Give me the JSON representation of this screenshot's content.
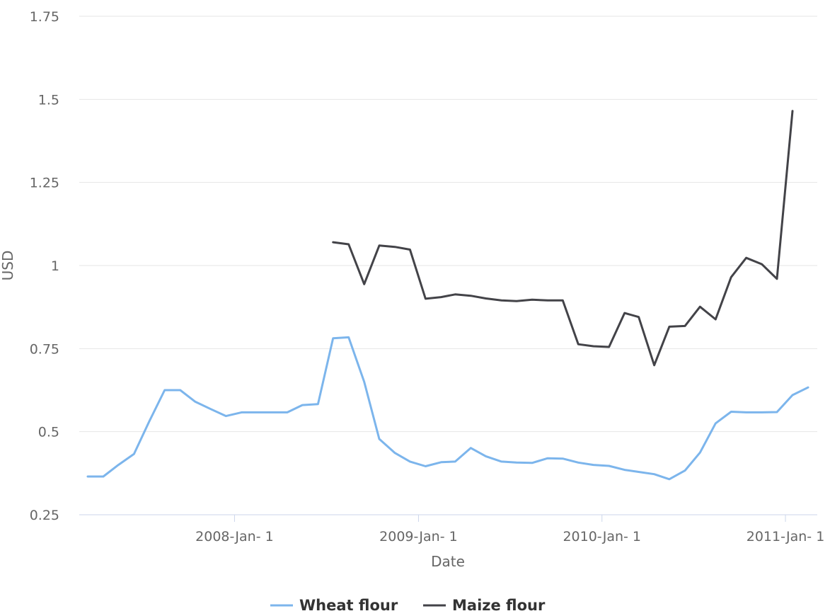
{
  "chart_data": {
    "type": "line",
    "title": "",
    "xlabel": "Date",
    "ylabel": "USD",
    "ylim": [
      0.25,
      1.75
    ],
    "yticks": [
      "0.25",
      "0.5",
      "0.75",
      "1",
      "1.25",
      "1.5",
      "1.75"
    ],
    "xticks": [
      {
        "label": "2008-Jan- 1",
        "date": "2008-01-01"
      },
      {
        "label": "2009-Jan- 1",
        "date": "2009-01-01"
      },
      {
        "label": "2010-Jan- 1",
        "date": "2010-01-01"
      },
      {
        "label": "2011-Jan- 1",
        "date": "2011-01-01"
      }
    ],
    "grid": true,
    "legend_position": "bottom",
    "series": [
      {
        "name": "Wheat flour",
        "color": "#7cb5ec",
        "points": [
          [
            "2007-03-15",
            0.365
          ],
          [
            "2007-04-15",
            0.365
          ],
          [
            "2007-05-15",
            0.4
          ],
          [
            "2007-06-15",
            0.433
          ],
          [
            "2007-07-15",
            0.53
          ],
          [
            "2007-08-15",
            0.625
          ],
          [
            "2007-09-15",
            0.625
          ],
          [
            "2007-10-15",
            0.59
          ],
          [
            "2007-11-15",
            0.568
          ],
          [
            "2007-12-15",
            0.547
          ],
          [
            "2008-01-15",
            0.558
          ],
          [
            "2008-02-15",
            0.558
          ],
          [
            "2008-03-15",
            0.558
          ],
          [
            "2008-04-15",
            0.558
          ],
          [
            "2008-05-15",
            0.58
          ],
          [
            "2008-06-15",
            0.583
          ],
          [
            "2008-07-15",
            0.781
          ],
          [
            "2008-08-15",
            0.784
          ],
          [
            "2008-09-15",
            0.65
          ],
          [
            "2008-10-15",
            0.478
          ],
          [
            "2008-11-15",
            0.436
          ],
          [
            "2008-12-15",
            0.41
          ],
          [
            "2009-01-15",
            0.396
          ],
          [
            "2009-02-15",
            0.408
          ],
          [
            "2009-03-15",
            0.41
          ],
          [
            "2009-04-15",
            0.451
          ],
          [
            "2009-05-15",
            0.426
          ],
          [
            "2009-06-15",
            0.41
          ],
          [
            "2009-07-15",
            0.407
          ],
          [
            "2009-08-15",
            0.406
          ],
          [
            "2009-09-15",
            0.42
          ],
          [
            "2009-10-15",
            0.419
          ],
          [
            "2009-11-15",
            0.407
          ],
          [
            "2009-12-15",
            0.4
          ],
          [
            "2010-01-15",
            0.397
          ],
          [
            "2010-02-15",
            0.385
          ],
          [
            "2010-03-15",
            0.379
          ],
          [
            "2010-04-15",
            0.372
          ],
          [
            "2010-05-15",
            0.357
          ],
          [
            "2010-06-15",
            0.383
          ],
          [
            "2010-07-15",
            0.437
          ],
          [
            "2010-08-15",
            0.525
          ],
          [
            "2010-09-15",
            0.56
          ],
          [
            "2010-10-15",
            0.558
          ],
          [
            "2010-11-15",
            0.558
          ],
          [
            "2010-12-15",
            0.559
          ],
          [
            "2011-01-15",
            0.61
          ],
          [
            "2011-02-15",
            0.633
          ]
        ]
      },
      {
        "name": "Maize flour",
        "color": "#434348",
        "points": [
          [
            "2008-07-15",
            1.07
          ],
          [
            "2008-08-15",
            1.064
          ],
          [
            "2008-09-15",
            0.944
          ],
          [
            "2008-10-15",
            1.06
          ],
          [
            "2008-11-15",
            1.056
          ],
          [
            "2008-12-15",
            1.048
          ],
          [
            "2009-01-15",
            0.9
          ],
          [
            "2009-02-15",
            0.905
          ],
          [
            "2009-03-15",
            0.913
          ],
          [
            "2009-04-15",
            0.909
          ],
          [
            "2009-05-15",
            0.901
          ],
          [
            "2009-06-15",
            0.895
          ],
          [
            "2009-07-15",
            0.893
          ],
          [
            "2009-08-15",
            0.897
          ],
          [
            "2009-09-15",
            0.895
          ],
          [
            "2009-10-15",
            0.895
          ],
          [
            "2009-11-15",
            0.763
          ],
          [
            "2009-12-15",
            0.757
          ],
          [
            "2010-01-15",
            0.755
          ],
          [
            "2010-02-15",
            0.857
          ],
          [
            "2010-03-15",
            0.845
          ],
          [
            "2010-04-15",
            0.7
          ],
          [
            "2010-05-15",
            0.816
          ],
          [
            "2010-06-15",
            0.818
          ],
          [
            "2010-07-15",
            0.876
          ],
          [
            "2010-08-15",
            0.838
          ],
          [
            "2010-09-15",
            0.965
          ],
          [
            "2010-10-15",
            1.023
          ],
          [
            "2010-11-15",
            1.004
          ],
          [
            "2010-12-15",
            0.96
          ],
          [
            "2011-01-15",
            1.465
          ]
        ]
      }
    ]
  }
}
